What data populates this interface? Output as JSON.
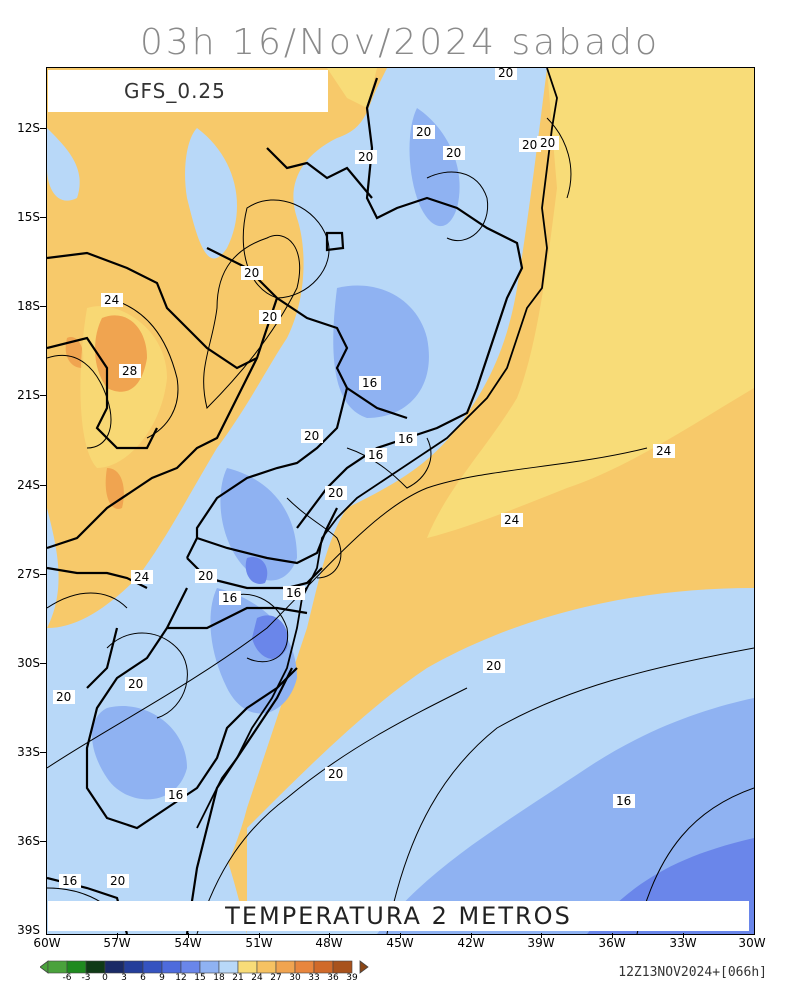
{
  "title": "03h 16/Nov/2024 sabado",
  "model": "GFS_0.25",
  "variable": "TEMPERATURA 2 METROS",
  "run_info": "12Z13NOV2024+[066h]",
  "lat_labels": [
    "12S",
    "15S",
    "18S",
    "21S",
    "24S",
    "27S",
    "30S",
    "33S",
    "36S",
    "39S"
  ],
  "lon_labels": [
    "60W",
    "57W",
    "54W",
    "51W",
    "48W",
    "45W",
    "42W",
    "39W",
    "36W",
    "33W",
    "30W"
  ],
  "colorbar": {
    "labels": [
      "-6",
      "-3",
      "0",
      "3",
      "6",
      "9",
      "12",
      "15",
      "18",
      "21",
      "24",
      "27",
      "30",
      "33",
      "36",
      "39"
    ],
    "colors": [
      "#4aa23c",
      "#1f8a1f",
      "#0f3a16",
      "#1a2a66",
      "#243e9a",
      "#3553c0",
      "#4e6bdc",
      "#6a86ea",
      "#8fb2f2",
      "#b8d8f8",
      "#f8dc78",
      "#f6c262",
      "#f0a450",
      "#e8863e",
      "#d06a2a",
      "#a8521c"
    ]
  },
  "contour_labels": [
    "20",
    "20",
    "20",
    "20",
    "20",
    "20",
    "24",
    "20",
    "20",
    "28",
    "16",
    "16",
    "16",
    "20",
    "20",
    "24",
    "24",
    "24",
    "20",
    "16",
    "16",
    "20",
    "20",
    "20",
    "16",
    "20",
    "16",
    "20",
    "16",
    "16"
  ],
  "colors": {
    "warm_land": "#f7c96a",
    "hot": "#f0a450",
    "ocean_warm": "#f8dc78",
    "cool1": "#b8d8f8",
    "cool2": "#8fb2f2",
    "cool3": "#6a86ea",
    "cool4": "#4e6bdc"
  }
}
